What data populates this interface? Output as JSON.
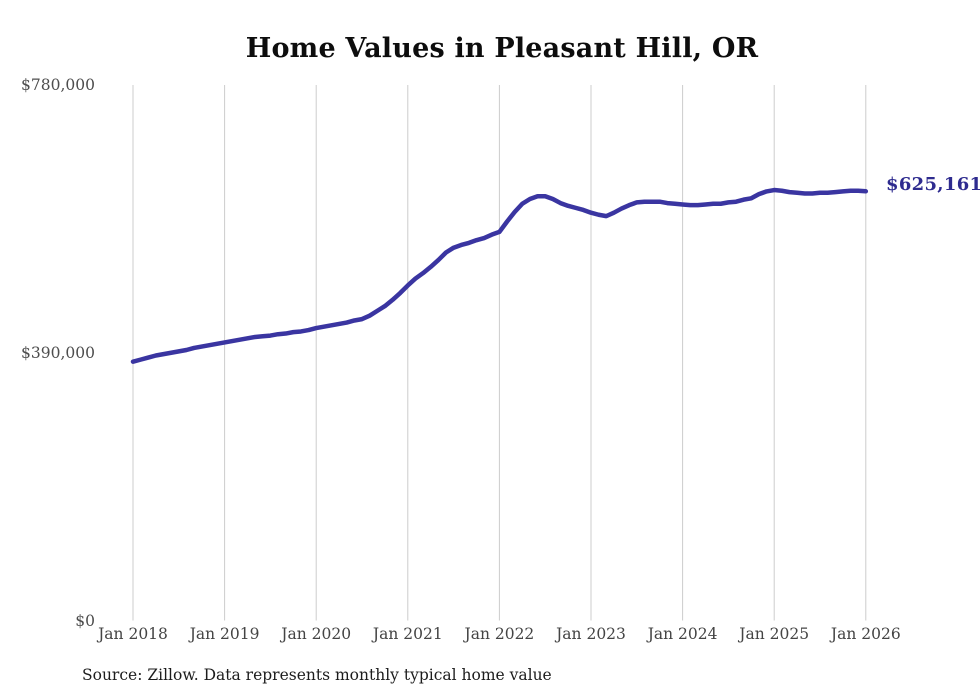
{
  "title": "Home Values in Pleasant Hill, OR",
  "source_note": "Source: Zillow. Data represents monthly typical home value",
  "latest_value_label": "$625,161",
  "colors": {
    "line": "#3a35a1",
    "latest_label": "#2e2b8f",
    "gridline": "#cccccc",
    "axis_text": "#4d4d4d",
    "title_text": "#0d0d0d",
    "background": "#ffffff"
  },
  "chart_data": {
    "type": "line",
    "title": "Home Values in Pleasant Hill, OR",
    "xlabel": "",
    "ylabel": "",
    "ylim": [
      0,
      780000
    ],
    "grid": "vertical-only",
    "legend": "none",
    "y_ticks": [
      {
        "label": "$780,000",
        "value": 780000
      },
      {
        "label": "$390,000",
        "value": 390000
      },
      {
        "label": "$0",
        "value": 0
      }
    ],
    "x_tick_labels": [
      "Jan 2018",
      "Jan 2019",
      "Jan 2020",
      "Jan 2021",
      "Jan 2022",
      "Jan 2023",
      "Jan 2024",
      "Jan 2025",
      "Jan 2026"
    ],
    "x_start_month": "Jan 2018",
    "x_end_month": "Jan 2026",
    "x_interval": "monthly",
    "latest_value": 625161,
    "series": [
      {
        "name": "typical-home-value",
        "unit": "USD",
        "values": [
          377000,
          380000,
          383000,
          386000,
          388000,
          390000,
          392000,
          394000,
          397000,
          399000,
          401000,
          403000,
          405000,
          407000,
          409000,
          411000,
          413000,
          414000,
          415000,
          417000,
          418000,
          420000,
          421000,
          423000,
          426000,
          428000,
          430000,
          432000,
          434000,
          437000,
          439000,
          444000,
          451000,
          458000,
          467000,
          477000,
          488000,
          498000,
          506000,
          515000,
          525000,
          536000,
          543000,
          547000,
          550000,
          554000,
          557000,
          562000,
          566000,
          581000,
          595000,
          607000,
          614000,
          618000,
          618000,
          614000,
          608000,
          604000,
          601000,
          598000,
          594000,
          591000,
          589000,
          594000,
          600000,
          605000,
          609000,
          610000,
          610000,
          610000,
          608000,
          607000,
          606000,
          605000,
          605000,
          606000,
          607000,
          607000,
          609000,
          610000,
          613000,
          615000,
          621000,
          625000,
          627000,
          626000,
          624000,
          623000,
          622000,
          622000,
          623000,
          623000,
          624000,
          625000,
          626000,
          626000,
          625161
        ]
      }
    ]
  }
}
